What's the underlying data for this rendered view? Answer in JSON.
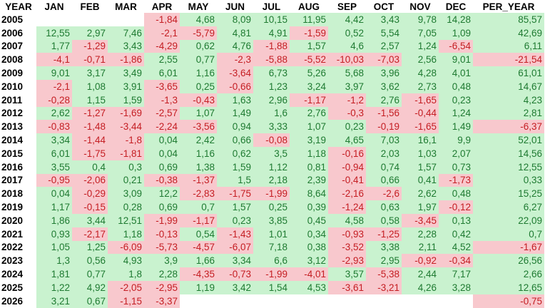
{
  "table": {
    "columns": [
      "YEAR",
      "JAN",
      "FEB",
      "MAR",
      "APR",
      "MAY",
      "JUN",
      "JUL",
      "AUG",
      "SEP",
      "OCT",
      "NOV",
      "DEC",
      "PER_YEAR"
    ],
    "rows": [
      {
        "year": "2005",
        "cells": [
          "",
          "",
          "",
          "-1,84",
          "4,68",
          "8,09",
          "10,15",
          "11,95",
          "4,42",
          "3,43",
          "9,78",
          "14,28",
          "85,57"
        ]
      },
      {
        "year": "2006",
        "cells": [
          "12,55",
          "2,97",
          "7,46",
          "-2,1",
          "-5,79",
          "4,81",
          "4,91",
          "-1,59",
          "0,52",
          "5,54",
          "7,05",
          "1,09",
          "42,69"
        ]
      },
      {
        "year": "2007",
        "cells": [
          "1,77",
          "-1,29",
          "3,43",
          "-4,29",
          "0,62",
          "4,76",
          "-1,88",
          "1,57",
          "4,6",
          "2,57",
          "1,24",
          "-6,54",
          "6,11"
        ]
      },
      {
        "year": "2008",
        "cells": [
          "-4,1",
          "-0,71",
          "-1,86",
          "2,55",
          "0,77",
          "-2,3",
          "-5,88",
          "-5,52",
          "-10,03",
          "-7,03",
          "2,56",
          "9,01",
          "-21,54"
        ]
      },
      {
        "year": "2009",
        "cells": [
          "9,01",
          "3,17",
          "3,49",
          "6,01",
          "1,16",
          "-3,64",
          "6,73",
          "5,26",
          "5,68",
          "3,96",
          "4,28",
          "4,01",
          "61,01"
        ]
      },
      {
        "year": "2010",
        "cells": [
          "-2,1",
          "1,08",
          "3,91",
          "-3,65",
          "0,25",
          "-0,66",
          "1,23",
          "3,24",
          "3,97",
          "3,62",
          "2,73",
          "0,48",
          "14,67"
        ]
      },
      {
        "year": "2011",
        "cells": [
          "-0,28",
          "1,15",
          "1,59",
          "-1,3",
          "-0,43",
          "1,63",
          "2,96",
          "-1,17",
          "-1,2",
          "2,76",
          "-1,65",
          "0,23",
          "4,23"
        ]
      },
      {
        "year": "2012",
        "cells": [
          "2,62",
          "-1,27",
          "-1,69",
          "-2,57",
          "1,07",
          "1,49",
          "1,6",
          "2,76",
          "-0,3",
          "-1,56",
          "-0,44",
          "1,24",
          "2,81"
        ]
      },
      {
        "year": "2013",
        "cells": [
          "-0,83",
          "-1,48",
          "-3,44",
          "-2,24",
          "-3,56",
          "0,94",
          "3,33",
          "1,07",
          "0,23",
          "-0,19",
          "-1,65",
          "1,49",
          "-6,37"
        ]
      },
      {
        "year": "2014",
        "cells": [
          "3,34",
          "-1,44",
          "-1,8",
          "0,04",
          "2,42",
          "0,66",
          "-0,08",
          "3,19",
          "4,65",
          "7,03",
          "16,1",
          "9,9",
          "52,01"
        ]
      },
      {
        "year": "2015",
        "cells": [
          "6,01",
          "-1,75",
          "-1,81",
          "0,04",
          "1,16",
          "0,62",
          "3,5",
          "1,18",
          "-0,16",
          "2,03",
          "1,03",
          "2,07",
          "14,56"
        ]
      },
      {
        "year": "2016",
        "cells": [
          "3,55",
          "0,4",
          "0,3",
          "0,69",
          "1,38",
          "1,59",
          "1,12",
          "0,81",
          "-0,94",
          "0,74",
          "1,57",
          "0,73",
          "12,55"
        ]
      },
      {
        "year": "2017",
        "cells": [
          "-0,95",
          "-2,06",
          "0,21",
          "-0,38",
          "-1,37",
          "1,5",
          "2,18",
          "2,39",
          "-0,41",
          "0,66",
          "0,41",
          "-1,73",
          "0,33"
        ]
      },
      {
        "year": "2018",
        "cells": [
          "0,04",
          "-0,29",
          "3,09",
          "12,2",
          "-2,83",
          "-1,75",
          "-1,99",
          "8,64",
          "-2,16",
          "-2,6",
          "2,62",
          "0,48",
          "15,25"
        ]
      },
      {
        "year": "2019",
        "cells": [
          "1,17",
          "-0,15",
          "0,28",
          "0,69",
          "0,7",
          "1,57",
          "0,25",
          "0,39",
          "-1,24",
          "0,63",
          "1,97",
          "-0,12",
          "6,27"
        ]
      },
      {
        "year": "2020",
        "cells": [
          "1,86",
          "3,44",
          "12,51",
          "-1,99",
          "-1,17",
          "0,23",
          "3,85",
          "0,45",
          "4,58",
          "0,58",
          "-3,45",
          "0,13",
          "22,09"
        ]
      },
      {
        "year": "2021",
        "cells": [
          "0,93",
          "-2,17",
          "1,18",
          "-0,13",
          "0,54",
          "-1,43",
          "1,01",
          "0,34",
          "-0,93",
          "-1,25",
          "2,28",
          "0,42",
          "0,7"
        ]
      },
      {
        "year": "2022",
        "cells": [
          "1,05",
          "1,25",
          "-6,09",
          "-5,73",
          "-4,57",
          "-6,07",
          "7,18",
          "0,38",
          "-3,52",
          "3,38",
          "2,11",
          "4,52",
          "-1,67"
        ]
      },
      {
        "year": "2023",
        "cells": [
          "1,3",
          "0,56",
          "4,93",
          "3,9",
          "1,66",
          "3,34",
          "6,6",
          "3,12",
          "-2,93",
          "2,95",
          "-0,92",
          "-0,34",
          "26,56"
        ]
      },
      {
        "year": "2024",
        "cells": [
          "1,81",
          "0,77",
          "1,8",
          "2,28",
          "-4,35",
          "-0,73",
          "-1,99",
          "-4,01",
          "3,57",
          "-5,38",
          "2,44",
          "7,17",
          "2,66"
        ]
      },
      {
        "year": "2025",
        "cells": [
          "1,22",
          "4,92",
          "-2,05",
          "-2,95",
          "1,19",
          "3,42",
          "1,54",
          "4,53",
          "-3,61",
          "-3,21",
          "4,26",
          "3,28",
          "12,65"
        ]
      },
      {
        "year": "2026",
        "cells": [
          "3,21",
          "0,67",
          "-1,15",
          "-3,37",
          "",
          "",
          "",
          "",
          "",
          "",
          "",
          "",
          "-0,75"
        ]
      }
    ]
  },
  "colors": {
    "positive_bg": "#c9f2cf",
    "positive_text": "#1e7a31",
    "negative_bg": "#f8c8cd",
    "negative_text": "#c41d22",
    "header_text": "#000000"
  }
}
